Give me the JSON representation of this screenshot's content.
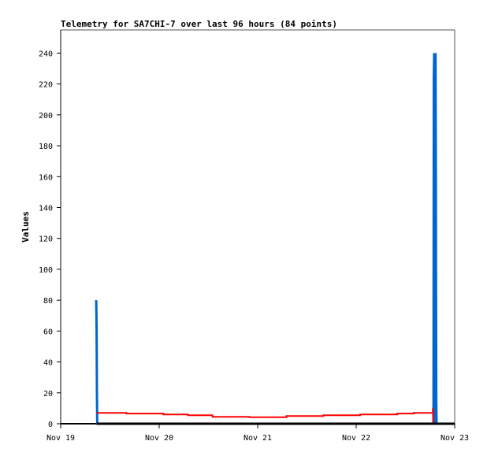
{
  "chart_data": {
    "type": "line",
    "title": "Telemetry for SA7CHI-7 over last 96 hours (84 points)",
    "xlabel": "",
    "ylabel": "Values",
    "xlim": [
      "Nov 19 00:00",
      "Nov 23 00:00"
    ],
    "ylim": [
      0,
      255
    ],
    "x_ticks": [
      {
        "label": "Nov 19",
        "value": "Nov 19 00:00"
      },
      {
        "label": "Nov 20",
        "value": "Nov 20 00:00"
      },
      {
        "label": "Nov 21",
        "value": "Nov 21 00:00"
      },
      {
        "label": "Nov 22",
        "value": "Nov 22 00:00"
      },
      {
        "label": "Nov 23",
        "value": "Nov 23 00:00"
      }
    ],
    "y_ticks": [
      0,
      20,
      40,
      60,
      80,
      100,
      120,
      140,
      160,
      180,
      200,
      220,
      240
    ],
    "grid": false,
    "series": [
      {
        "color": "#0066cc",
        "points": [
          [
            "Nov 19 08:40",
            80
          ],
          [
            "Nov 19 08:45",
            60
          ],
          [
            "Nov 19 08:50",
            20
          ],
          [
            "Nov 19 08:55",
            0
          ],
          [
            "Nov 22 18:50",
            0
          ],
          [
            "Nov 22 18:55",
            225
          ],
          [
            "Nov 22 19:00",
            240
          ],
          [
            "Nov 22 19:05",
            192
          ],
          [
            "Nov 22 19:10",
            0
          ],
          [
            "Nov 22 19:20",
            240
          ],
          [
            "Nov 22 19:25",
            160
          ],
          [
            "Nov 22 19:30",
            16
          ],
          [
            "Nov 22 19:35",
            0
          ]
        ]
      },
      {
        "color": "#ff0000",
        "points": [
          [
            "Nov 19 08:45",
            7
          ],
          [
            "Nov 19 16:00",
            7
          ],
          [
            "Nov 19 16:00",
            6.6
          ],
          [
            "Nov 20 01:00",
            6.6
          ],
          [
            "Nov 20 01:00",
            6
          ],
          [
            "Nov 20 07:00",
            6
          ],
          [
            "Nov 20 07:00",
            5.5
          ],
          [
            "Nov 20 13:00",
            5.5
          ],
          [
            "Nov 20 13:00",
            4.5
          ],
          [
            "Nov 20 22:00",
            4.5
          ],
          [
            "Nov 20 22:00",
            4.2
          ],
          [
            "Nov 21 07:00",
            4.2
          ],
          [
            "Nov 21 07:00",
            5
          ],
          [
            "Nov 21 16:00",
            5
          ],
          [
            "Nov 21 16:00",
            5.5
          ],
          [
            "Nov 22 01:00",
            5.5
          ],
          [
            "Nov 22 01:00",
            6
          ],
          [
            "Nov 22 10:00",
            6
          ],
          [
            "Nov 22 10:00",
            6.6
          ],
          [
            "Nov 22 14:00",
            6.6
          ],
          [
            "Nov 22 14:00",
            7
          ],
          [
            "Nov 22 18:40",
            7
          ],
          [
            "Nov 22 18:40",
            10
          ],
          [
            "Nov 22 18:45",
            0
          ]
        ]
      },
      {
        "color": "#000000",
        "points": [
          [
            "Nov 19 08:45",
            0
          ],
          [
            "Nov 23 00:00",
            0
          ]
        ]
      }
    ]
  }
}
